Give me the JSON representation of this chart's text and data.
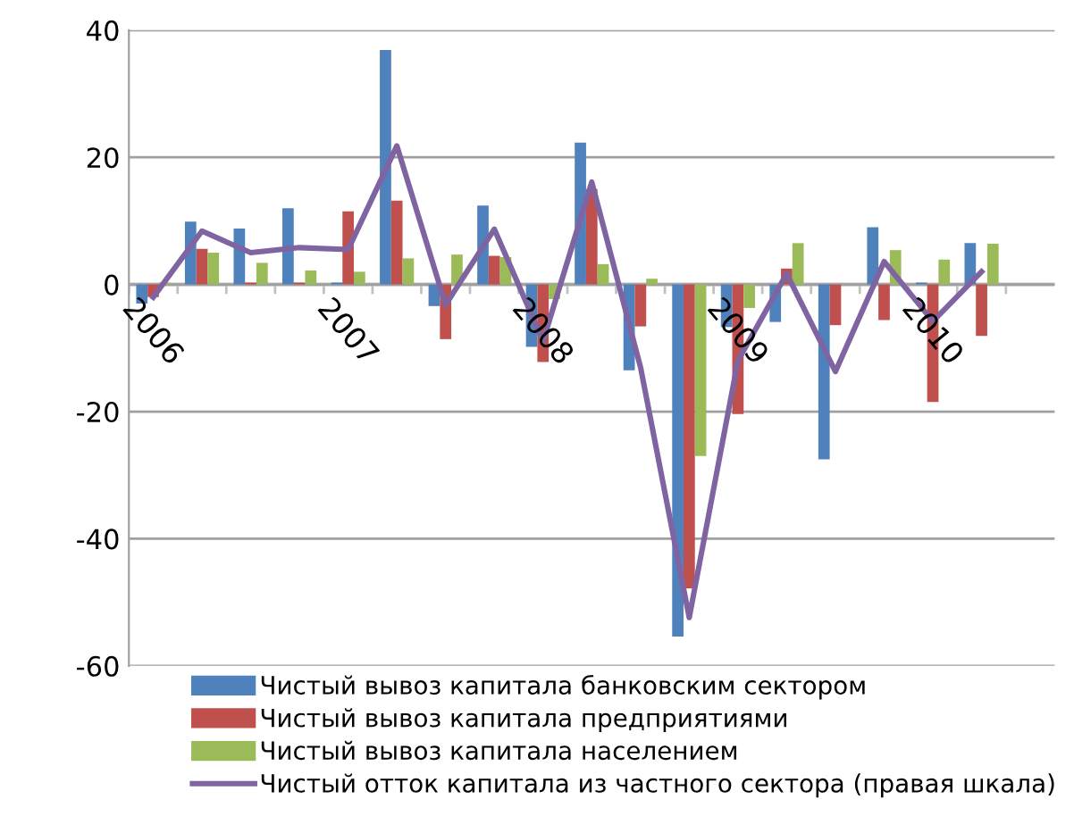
{
  "chart_data": {
    "type": "bar",
    "categories": [
      "2006",
      null,
      null,
      null,
      "2007",
      null,
      null,
      null,
      "2008",
      null,
      null,
      null,
      "2009",
      null,
      null,
      null,
      "2010",
      null
    ],
    "series": [
      {
        "name": "Чистый вывоз капитала банковским сектором",
        "color": "#4f81bd",
        "values": [
          -3,
          9.9,
          8.8,
          12,
          0.3,
          36.9,
          -3.4,
          12.4,
          -9.8,
          22.3,
          -13.5,
          -55.4,
          -6.7,
          -5.9,
          -27.5,
          9,
          0.3,
          6.5
        ]
      },
      {
        "name": "Чистый вывоз капитала предприятиями",
        "color": "#c0504d",
        "values": [
          -2,
          5.6,
          0.3,
          0.3,
          11.5,
          13.2,
          -8.6,
          4.5,
          -12.2,
          15,
          -6.6,
          -47.8,
          -20.4,
          2.5,
          -6.4,
          -5.6,
          -18.5,
          -8.1
        ]
      },
      {
        "name": "Чистый вывоз капитала населением",
        "color": "#9bbb59",
        "values": [
          0.3,
          5,
          3.4,
          2.2,
          2,
          4.1,
          4.7,
          4.3,
          -2.3,
          3.2,
          0.9,
          -27,
          -3.7,
          6.5,
          0,
          5.4,
          3.9,
          6.4
        ]
      },
      {
        "name": "Чистый отток капитала из частного сектора (правая шкала)",
        "color": "#8064a2",
        "type": "line",
        "values": [
          -2,
          8.4,
          5,
          5.8,
          5.5,
          21.8,
          -3.2,
          8.7,
          -8.9,
          16.1,
          -13,
          -52.4,
          -12,
          1.7,
          -13.7,
          3.6,
          -5.8,
          2
        ]
      }
    ],
    "ylim": [
      -60,
      40
    ],
    "yticks": [
      -60,
      -40,
      -20,
      0,
      20,
      40
    ],
    "grid": "y",
    "legend": "bottom"
  }
}
